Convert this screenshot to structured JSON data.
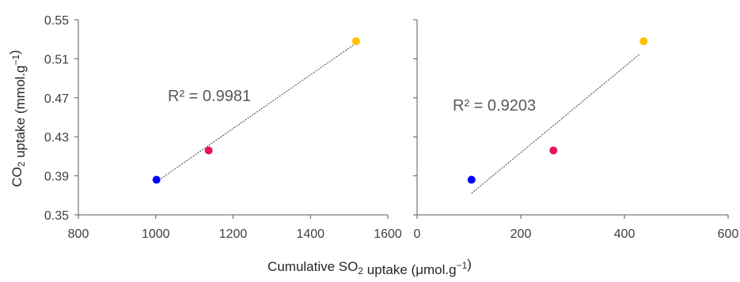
{
  "chart_data": [
    {
      "type": "scatter",
      "title": "",
      "xlabel": "Cumulative SO₂ uptake (μmol.g⁻¹)",
      "ylabel": "CO₂ uptake (mmol.g⁻¹)",
      "xlim": [
        800,
        1600
      ],
      "ylim": [
        0.35,
        0.55
      ],
      "xticks": [
        "800",
        "1000",
        "1200",
        "1400",
        "1600"
      ],
      "yticks": [
        "0.35",
        "0.39",
        "0.43",
        "0.47",
        "0.51",
        "0.55"
      ],
      "points": [
        {
          "x": 1002,
          "y": 0.386,
          "color": "#0000ff"
        },
        {
          "x": 1137,
          "y": 0.416,
          "color": "#e8115b"
        },
        {
          "x": 1518,
          "y": 0.528,
          "color": "#ffc000"
        }
      ],
      "trendline": {
        "x": [
          1002,
          1518
        ],
        "y": [
          0.384,
          0.526
        ],
        "style": "dotted",
        "color": "#404040"
      },
      "annotation": "R² = 0.9981",
      "grid": false
    },
    {
      "type": "scatter",
      "title": "",
      "xlabel": "Cumulative SO₂ uptake (μmol.g⁻¹)",
      "ylabel": "",
      "xlim": [
        0,
        600
      ],
      "ylim": [
        0.35,
        0.55
      ],
      "xticks": [
        "0",
        "200",
        "400",
        "600"
      ],
      "yticks": [],
      "points": [
        {
          "x": 105,
          "y": 0.386,
          "color": "#0000ff"
        },
        {
          "x": 263,
          "y": 0.416,
          "color": "#e8115b"
        },
        {
          "x": 437,
          "y": 0.528,
          "color": "#ffc000"
        }
      ],
      "trendline": {
        "x": [
          105,
          430
        ],
        "y": [
          0.372,
          0.515
        ],
        "style": "dotted",
        "color": "#404040"
      },
      "annotation": "R² = 0.9203",
      "grid": false
    }
  ]
}
